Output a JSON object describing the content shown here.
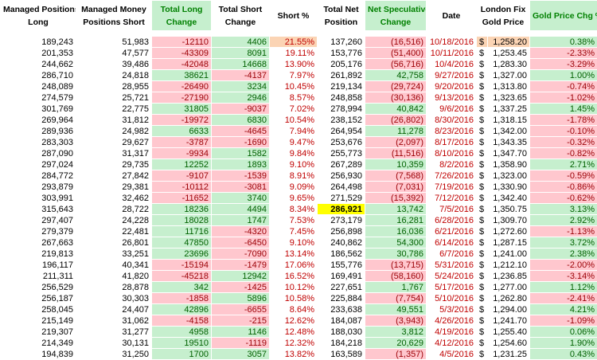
{
  "table": {
    "headers": [
      [
        "Managed Positions",
        "Long"
      ],
      [
        "Managed Money",
        "Positions Short"
      ],
      [
        "Total Long",
        "Change"
      ],
      [
        "Total Short",
        "Change"
      ],
      [
        "Short %"
      ],
      [
        "Total Net",
        "Position"
      ],
      [
        "Net Speculative",
        "Change"
      ],
      [
        "Date"
      ],
      [
        "London Fix",
        "Gold Price"
      ],
      [
        "Gold Price Chg %"
      ]
    ],
    "rows": [
      [
        "189,243",
        "51,983",
        "-12110",
        "4406",
        "21.55%",
        "137,260",
        "(16,516)",
        "10/18/2016",
        "$",
        "1,258.20",
        "0.38%"
      ],
      [
        "201,353",
        "47,577",
        "-43309",
        "8091",
        "19.11%",
        "153,776",
        "(51,400)",
        "10/11/2016",
        "$",
        "1,253.45",
        "-2.33%"
      ],
      [
        "244,662",
        "39,486",
        "-42048",
        "14668",
        "13.90%",
        "205,176",
        "(56,716)",
        "10/4/2016",
        "$",
        "1,283.30",
        "-3.29%"
      ],
      [
        "286,710",
        "24,818",
        "38621",
        "-4137",
        "7.97%",
        "261,892",
        "42,758",
        "9/27/2016",
        "$",
        "1,327.00",
        "1.00%"
      ],
      [
        "248,089",
        "28,955",
        "-26490",
        "3234",
        "10.45%",
        "219,134",
        "(29,724)",
        "9/20/2016",
        "$",
        "1,313.80",
        "-0.74%"
      ],
      [
        "274,579",
        "25,721",
        "-27190",
        "2946",
        "8.57%",
        "248,858",
        "(30,136)",
        "9/13/2016",
        "$",
        "1,323.65",
        "-1.02%"
      ],
      [
        "301,769",
        "22,775",
        "31805",
        "-9037",
        "7.02%",
        "278,994",
        "40,842",
        "9/6/2016",
        "$",
        "1,337.25",
        "1.45%"
      ],
      [
        "269,964",
        "31,812",
        "-19972",
        "6830",
        "10.54%",
        "238,152",
        "(26,802)",
        "8/30/2016",
        "$",
        "1,318.15",
        "-1.78%"
      ],
      [
        "289,936",
        "24,982",
        "6633",
        "-4645",
        "7.94%",
        "264,954",
        "11,278",
        "8/23/2016",
        "$",
        "1,342.00",
        "-0.10%"
      ],
      [
        "283,303",
        "29,627",
        "-3787",
        "-1690",
        "9.47%",
        "253,676",
        "(2,097)",
        "8/17/2016",
        "$",
        "1,343.35",
        "-0.32%"
      ],
      [
        "287,090",
        "31,317",
        "-9934",
        "1582",
        "9.84%",
        "255,773",
        "(11,516)",
        "8/10/2016",
        "$",
        "1,347.70",
        "-0.82%"
      ],
      [
        "297,024",
        "29,735",
        "12252",
        "1893",
        "9.10%",
        "267,289",
        "10,359",
        "8/2/2016",
        "$",
        "1,358.90",
        "2.71%"
      ],
      [
        "284,772",
        "27,842",
        "-9107",
        "-1539",
        "8.91%",
        "256,930",
        "(7,568)",
        "7/26/2016",
        "$",
        "1,323.00",
        "-0.59%"
      ],
      [
        "293,879",
        "29,381",
        "-10112",
        "-3081",
        "9.09%",
        "264,498",
        "(7,031)",
        "7/19/2016",
        "$",
        "1,330.90",
        "-0.86%"
      ],
      [
        "303,991",
        "32,462",
        "-11652",
        "3740",
        "9.65%",
        "271,529",
        "(15,392)",
        "7/12/2016",
        "$",
        "1,342.40",
        "-0.62%"
      ],
      [
        "315,643",
        "28,722",
        "18236",
        "4494",
        "8.34%",
        "286,921",
        "13,742",
        "7/5/2016",
        "$",
        "1,350.75",
        "3.13%"
      ],
      [
        "297,407",
        "24,228",
        "18028",
        "1747",
        "7.53%",
        "273,179",
        "16,281",
        "6/28/2016",
        "$",
        "1,309.70",
        "2.92%"
      ],
      [
        "279,379",
        "22,481",
        "11716",
        "-4320",
        "7.45%",
        "256,898",
        "16,036",
        "6/21/2016",
        "$",
        "1,272.60",
        "-1.13%"
      ],
      [
        "267,663",
        "26,801",
        "47850",
        "-6450",
        "9.10%",
        "240,862",
        "54,300",
        "6/14/2016",
        "$",
        "1,287.15",
        "3.72%"
      ],
      [
        "219,813",
        "33,251",
        "23696",
        "-7090",
        "13.14%",
        "186,562",
        "30,786",
        "6/7/2016",
        "$",
        "1,241.00",
        "2.38%"
      ],
      [
        "196,117",
        "40,341",
        "-15194",
        "-1479",
        "17.06%",
        "155,776",
        "(13,715)",
        "5/31/2016",
        "$",
        "1,212.10",
        "-2.00%"
      ],
      [
        "211,311",
        "41,820",
        "-45218",
        "12942",
        "16.52%",
        "169,491",
        "(58,160)",
        "5/24/2016",
        "$",
        "1,236.85",
        "-3.14%"
      ],
      [
        "256,529",
        "28,878",
        "342",
        "-1425",
        "10.12%",
        "227,651",
        "1,767",
        "5/17/2016",
        "$",
        "1,277.00",
        "1.12%"
      ],
      [
        "256,187",
        "30,303",
        "-1858",
        "5896",
        "10.58%",
        "225,884",
        "(7,754)",
        "5/10/2016",
        "$",
        "1,262.80",
        "-2.41%"
      ],
      [
        "258,045",
        "24,407",
        "42896",
        "-6655",
        "8.64%",
        "233,638",
        "49,551",
        "5/3/2016",
        "$",
        "1,294.00",
        "4.21%"
      ],
      [
        "215,149",
        "31,062",
        "-4158",
        "-215",
        "12.62%",
        "184,087",
        "(3,943)",
        "4/26/2016",
        "$",
        "1,241.70",
        "-1.09%"
      ],
      [
        "219,307",
        "31,277",
        "4958",
        "1146",
        "12.48%",
        "188,030",
        "3,812",
        "4/19/2016",
        "$",
        "1,255.40",
        "0.06%"
      ],
      [
        "214,349",
        "30,131",
        "19510",
        "-1119",
        "12.32%",
        "184,218",
        "20,629",
        "4/12/2016",
        "$",
        "1,254.60",
        "1.90%"
      ],
      [
        "194,839",
        "31,250",
        "1700",
        "3057",
        "13.82%",
        "163,589",
        "(1,357)",
        "4/5/2016",
        "$",
        "1,231.25",
        "0.43%"
      ]
    ],
    "highlights": [
      {
        "cell": "table.rows.0.4",
        "color": "#fbd4b4"
      },
      {
        "cell": "table.rows.0.8",
        "color": "#fbd4b4"
      },
      {
        "cell": "table.rows.0.9",
        "color": "#fbd4b4"
      },
      {
        "cell": "table.rows.15.5",
        "color": "#ffff00"
      }
    ]
  }
}
